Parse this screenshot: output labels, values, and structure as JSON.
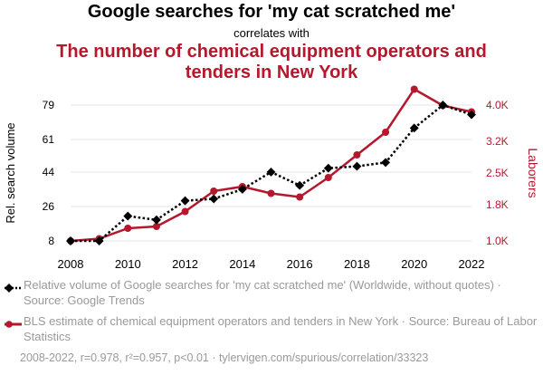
{
  "header": {
    "title_top": "Google searches for 'my cat scratched me'",
    "subtitle": "correlates with",
    "title_bottom": "The number of chemical equipment operators and tenders in New York"
  },
  "colors": {
    "series1": "#000000",
    "series2": "#b5172d",
    "text_muted": "#9a9a9a",
    "grid": "#e6e6e6"
  },
  "chart_data": {
    "type": "line",
    "x": [
      2008,
      2009,
      2010,
      2011,
      2012,
      2013,
      2014,
      2015,
      2016,
      2017,
      2018,
      2019,
      2020,
      2021,
      2022
    ],
    "x_ticks": [
      2008,
      2010,
      2012,
      2014,
      2016,
      2018,
      2020,
      2022
    ],
    "series": [
      {
        "axis": "left",
        "style": "dotted",
        "marker": "diamond",
        "values": [
          8,
          8,
          21,
          19,
          29,
          30,
          35,
          44,
          37,
          46,
          47,
          49,
          67,
          79,
          74
        ]
      },
      {
        "axis": "right",
        "style": "solid",
        "marker": "circle",
        "values": [
          1000,
          1050,
          1280,
          1320,
          1650,
          2100,
          2200,
          2050,
          1970,
          2400,
          2900,
          3400,
          4350,
          3990,
          3850
        ]
      }
    ],
    "ylabel_left": "Rel. search volume",
    "ylabel_right": "Laborers",
    "ylim_left": [
      8,
      79
    ],
    "yticks_left": [
      8,
      26,
      44,
      61,
      79
    ],
    "ylim_right": [
      1000,
      4000
    ],
    "yticks_right": [
      1000,
      1800,
      2500,
      3200,
      4000
    ],
    "ytick_labels_right": [
      "1.0K",
      "1.8K",
      "2.5K",
      "3.2K",
      "4.0K"
    ],
    "grid": "horizontal"
  },
  "legend": {
    "series1_text": "Relative volume of Google searches for 'my cat scratched me' (Worldwide, without quotes) · Source: Google Trends",
    "series2_text": "BLS estimate of chemical equipment operators and tenders in New York · Source: Bureau of Labor Statistics"
  },
  "footer": {
    "text": "2008-2022, r=0.978, r²=0.957, p<0.01 · tylervigen.com/spurious/correlation/33323"
  }
}
